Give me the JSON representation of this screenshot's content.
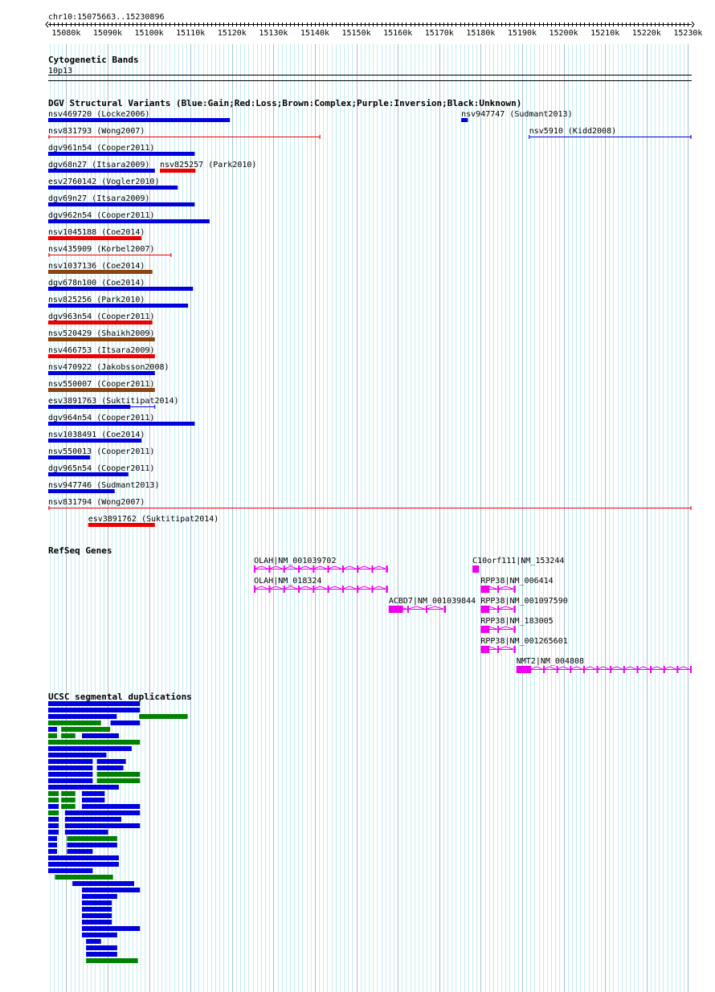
{
  "region": {
    "label": "chr10:15075663..15230896",
    "start": 15075663,
    "end": 15230896
  },
  "ruler_ticks": [
    "15080k",
    "15090k",
    "15100k",
    "15110k",
    "15120k",
    "15130k",
    "15140k",
    "15150k",
    "15160k",
    "15170k",
    "15180k",
    "15190k",
    "15200k",
    "15210k",
    "15220k",
    "15230k"
  ],
  "cytoband": {
    "title": "Cytogenetic Bands",
    "band": "10p13"
  },
  "dgv": {
    "title": "DGV Structural Variants (Blue:Gain;Red:Loss;Brown:Complex;Purple:Inversion;Black:Unknown)",
    "colors": {
      "gain": "#0000dd",
      "loss": "#ee0000",
      "complex": "#8b4513"
    },
    "variants": [
      {
        "label": "nsv469720 (Locke2006)",
        "start": 15075663,
        "end": 15119500,
        "type": "gain",
        "style": "bar",
        "row": 0
      },
      {
        "label": "nsv947747 (Sudmant2013)",
        "start": 15175300,
        "end": 15176900,
        "type": "gain",
        "style": "bar",
        "row": 0
      },
      {
        "label": "nsv831793 (Wong2007)",
        "start": 15075663,
        "end": 15141200,
        "type": "loss",
        "style": "line",
        "row": 1
      },
      {
        "label": "nsv5910 (Kidd2008)",
        "start": 15191700,
        "end": 15230896,
        "type": "gain",
        "style": "line",
        "row": 1
      },
      {
        "label": "dgv961n54 (Cooper2011)",
        "start": 15075663,
        "end": 15111000,
        "type": "gain",
        "style": "bar",
        "row": 2
      },
      {
        "label": "dgv68n27 (Itsara2009)",
        "start": 15075663,
        "end": 15101400,
        "type": "gain",
        "style": "bar",
        "row": 3
      },
      {
        "label": "nsv825257 (Park2010)",
        "start": 15102600,
        "end": 15111200,
        "type": "loss",
        "style": "bar",
        "row": 3
      },
      {
        "label": "esv2760142 (Vogler2010)",
        "start": 15075663,
        "end": 15106900,
        "type": "gain",
        "style": "bar",
        "row": 4
      },
      {
        "label": "dgv69n27 (Itsara2009)",
        "start": 15075663,
        "end": 15111000,
        "type": "gain",
        "style": "bar",
        "row": 5
      },
      {
        "label": "dgv962n54 (Cooper2011)",
        "start": 15075663,
        "end": 15114600,
        "type": "gain",
        "style": "bar",
        "row": 6
      },
      {
        "label": "nsv1045188 (Coe2014)",
        "start": 15075663,
        "end": 15098200,
        "type": "loss",
        "style": "bar",
        "row": 7
      },
      {
        "label": "nsv435909 (Korbel2007)",
        "start": 15075663,
        "end": 15105300,
        "type": "loss",
        "style": "line",
        "row": 8
      },
      {
        "label": "nsv1037136 (Coe2014)",
        "start": 15075663,
        "end": 15100800,
        "type": "complex",
        "style": "bar",
        "row": 9
      },
      {
        "label": "dgv678n100 (Coe2014)",
        "start": 15075663,
        "end": 15110600,
        "type": "gain",
        "style": "bar",
        "row": 10
      },
      {
        "label": "nsv825256 (Park2010)",
        "start": 15075663,
        "end": 15109400,
        "type": "gain",
        "style": "bar",
        "row": 11
      },
      {
        "label": "dgv963n54 (Cooper2011)",
        "start": 15075663,
        "end": 15100800,
        "type": "loss",
        "style": "bar",
        "row": 12
      },
      {
        "label": "nsv520429 (Shaikh2009)",
        "start": 15075663,
        "end": 15101400,
        "type": "complex",
        "style": "bar",
        "row": 13
      },
      {
        "label": "nsv466753 (Itsara2009)",
        "start": 15075663,
        "end": 15101400,
        "type": "loss",
        "style": "bar",
        "row": 14
      },
      {
        "label": "nsv470922 (Jakobsson2008)",
        "start": 15075663,
        "end": 15101400,
        "type": "gain",
        "style": "bar",
        "row": 15
      },
      {
        "label": "nsv550007 (Cooper2011)",
        "start": 15075663,
        "end": 15101400,
        "type": "complex",
        "style": "bar",
        "row": 16
      },
      {
        "label": "esv3891763 (Suktitipat2014)",
        "start": 15075663,
        "end": 15101400,
        "type": "gain",
        "style": "mixed",
        "row": 17
      },
      {
        "label": "dgv964n54 (Cooper2011)",
        "start": 15075663,
        "end": 15111000,
        "type": "gain",
        "style": "bar",
        "row": 18
      },
      {
        "label": "nsv1038491 (Coe2014)",
        "start": 15075663,
        "end": 15098200,
        "type": "gain",
        "style": "bar",
        "row": 19
      },
      {
        "label": "nsv550013 (Cooper2011)",
        "start": 15075663,
        "end": 15085800,
        "type": "gain",
        "style": "bar",
        "row": 20
      },
      {
        "label": "dgv965n54 (Cooper2011)",
        "start": 15075663,
        "end": 15095000,
        "type": "gain",
        "style": "bar",
        "row": 21
      },
      {
        "label": "nsv947746 (Sudmant2013)",
        "start": 15075663,
        "end": 15091700,
        "type": "gain",
        "style": "bar",
        "row": 22
      },
      {
        "label": "nsv831794 (Wong2007)",
        "start": 15075663,
        "end": 15230896,
        "type": "loss",
        "style": "line",
        "row": 23
      },
      {
        "label": "esv3891762 (Suktitipat2014)",
        "start": 15085300,
        "end": 15101400,
        "type": "loss",
        "style": "bar",
        "row": 24
      }
    ]
  },
  "refseq": {
    "title": "RefSeq Genes",
    "color": "#ee00ee",
    "genes": [
      {
        "label": "OLAH|NM_001039702",
        "start": 15125300,
        "end": 15157600,
        "row": 0
      },
      {
        "label": "C10orf111|NM_153244",
        "start": 15178000,
        "end": 15179600,
        "row": 0
      },
      {
        "label": "OLAH|NM_018324",
        "start": 15125300,
        "end": 15157600,
        "row": 1
      },
      {
        "label": "RPP38|NM_006414",
        "start": 15180000,
        "end": 15188400,
        "row": 1
      },
      {
        "label": "ACBD7|NM_001039844",
        "start": 15157800,
        "end": 15171600,
        "row": 2
      },
      {
        "label": "RPP38|NM_001097590",
        "start": 15180000,
        "end": 15188400,
        "row": 2
      },
      {
        "label": "RPP38|NM_183005",
        "start": 15180000,
        "end": 15188400,
        "row": 3
      },
      {
        "label": "RPP38|NM_001265601",
        "start": 15180000,
        "end": 15188400,
        "row": 4
      },
      {
        "label": "NMT2|NM_004808",
        "start": 15188600,
        "end": 15230896,
        "row": 5
      }
    ]
  },
  "segdups": {
    "title": "UCSC segmental duplications",
    "colors": {
      "blue": "#0000dd",
      "green": "#008000"
    },
    "items": [
      {
        "start": 15075663,
        "end": 15097800,
        "color": "blue",
        "row": 0
      },
      {
        "start": 15075663,
        "end": 15097800,
        "color": "blue",
        "row": 1
      },
      {
        "start": 15075663,
        "end": 15092200,
        "color": "blue",
        "row": 2
      },
      {
        "start": 15097600,
        "end": 15109300,
        "color": "green",
        "row": 2
      },
      {
        "start": 15075663,
        "end": 15088400,
        "color": "green",
        "row": 3
      },
      {
        "start": 15090700,
        "end": 15097800,
        "color": "blue",
        "row": 3
      },
      {
        "start": 15075663,
        "end": 15077800,
        "color": "blue",
        "row": 4
      },
      {
        "start": 15078800,
        "end": 15090600,
        "color": "green",
        "row": 4
      },
      {
        "start": 15075663,
        "end": 15077800,
        "color": "green",
        "row": 5
      },
      {
        "start": 15078800,
        "end": 15082200,
        "color": "green",
        "row": 5
      },
      {
        "start": 15083800,
        "end": 15092700,
        "color": "blue",
        "row": 5
      },
      {
        "start": 15075663,
        "end": 15097800,
        "color": "green",
        "row": 6
      },
      {
        "start": 15075663,
        "end": 15095800,
        "color": "blue",
        "row": 7
      },
      {
        "start": 15075663,
        "end": 15089700,
        "color": "blue",
        "row": 8
      },
      {
        "start": 15075663,
        "end": 15086400,
        "color": "blue",
        "row": 9
      },
      {
        "start": 15087400,
        "end": 15094400,
        "color": "blue",
        "row": 9
      },
      {
        "start": 15075663,
        "end": 15086400,
        "color": "blue",
        "row": 10
      },
      {
        "start": 15087400,
        "end": 15093800,
        "color": "blue",
        "row": 10
      },
      {
        "start": 15075663,
        "end": 15086400,
        "color": "blue",
        "row": 11
      },
      {
        "start": 15087400,
        "end": 15097800,
        "color": "green",
        "row": 11
      },
      {
        "start": 15075663,
        "end": 15086400,
        "color": "blue",
        "row": 12
      },
      {
        "start": 15087400,
        "end": 15097800,
        "color": "green",
        "row": 12
      },
      {
        "start": 15075663,
        "end": 15092700,
        "color": "blue",
        "row": 13
      },
      {
        "start": 15075663,
        "end": 15078200,
        "color": "green",
        "row": 14
      },
      {
        "start": 15078800,
        "end": 15082200,
        "color": "green",
        "row": 14
      },
      {
        "start": 15083800,
        "end": 15089300,
        "color": "blue",
        "row": 14
      },
      {
        "start": 15075663,
        "end": 15078200,
        "color": "green",
        "row": 15
      },
      {
        "start": 15078800,
        "end": 15082200,
        "color": "green",
        "row": 15
      },
      {
        "start": 15083800,
        "end": 15089300,
        "color": "blue",
        "row": 15
      },
      {
        "start": 15075663,
        "end": 15078200,
        "color": "blue",
        "row": 16
      },
      {
        "start": 15078800,
        "end": 15082200,
        "color": "green",
        "row": 16
      },
      {
        "start": 15083800,
        "end": 15097800,
        "color": "blue",
        "row": 16
      },
      {
        "start": 15075663,
        "end": 15078200,
        "color": "green",
        "row": 17
      },
      {
        "start": 15079700,
        "end": 15097800,
        "color": "blue",
        "row": 17
      },
      {
        "start": 15075663,
        "end": 15078200,
        "color": "blue",
        "row": 18
      },
      {
        "start": 15079700,
        "end": 15093300,
        "color": "blue",
        "row": 18
      },
      {
        "start": 15075663,
        "end": 15078200,
        "color": "blue",
        "row": 19
      },
      {
        "start": 15079700,
        "end": 15097800,
        "color": "blue",
        "row": 19
      },
      {
        "start": 15075663,
        "end": 15078200,
        "color": "blue",
        "row": 20
      },
      {
        "start": 15079700,
        "end": 15090100,
        "color": "blue",
        "row": 20
      },
      {
        "start": 15075663,
        "end": 15077800,
        "color": "blue",
        "row": 21
      },
      {
        "start": 15080200,
        "end": 15092300,
        "color": "green",
        "row": 21
      },
      {
        "start": 15075663,
        "end": 15077800,
        "color": "blue",
        "row": 22
      },
      {
        "start": 15080200,
        "end": 15092300,
        "color": "blue",
        "row": 22
      },
      {
        "start": 15075663,
        "end": 15077800,
        "color": "blue",
        "row": 23
      },
      {
        "start": 15080200,
        "end": 15086400,
        "color": "blue",
        "row": 23
      },
      {
        "start": 15075663,
        "end": 15092700,
        "color": "blue",
        "row": 24
      },
      {
        "start": 15075663,
        "end": 15092700,
        "color": "blue",
        "row": 25
      },
      {
        "start": 15075663,
        "end": 15086400,
        "color": "blue",
        "row": 26
      },
      {
        "start": 15077300,
        "end": 15091300,
        "color": "green",
        "row": 27
      },
      {
        "start": 15081500,
        "end": 15096400,
        "color": "blue",
        "row": 28
      },
      {
        "start": 15083800,
        "end": 15097800,
        "color": "blue",
        "row": 29
      },
      {
        "start": 15083800,
        "end": 15092300,
        "color": "blue",
        "row": 30
      },
      {
        "start": 15083800,
        "end": 15091000,
        "color": "blue",
        "row": 31
      },
      {
        "start": 15083800,
        "end": 15091000,
        "color": "blue",
        "row": 32
      },
      {
        "start": 15083800,
        "end": 15091000,
        "color": "blue",
        "row": 33
      },
      {
        "start": 15083800,
        "end": 15091000,
        "color": "blue",
        "row": 34
      },
      {
        "start": 15083800,
        "end": 15097800,
        "color": "blue",
        "row": 35
      },
      {
        "start": 15083800,
        "end": 15092300,
        "color": "blue",
        "row": 36
      },
      {
        "start": 15084800,
        "end": 15088400,
        "color": "blue",
        "row": 37
      },
      {
        "start": 15084800,
        "end": 15092300,
        "color": "blue",
        "row": 38
      },
      {
        "start": 15084800,
        "end": 15092300,
        "color": "blue",
        "row": 39
      },
      {
        "start": 15084800,
        "end": 15097300,
        "color": "green",
        "row": 40
      }
    ]
  }
}
